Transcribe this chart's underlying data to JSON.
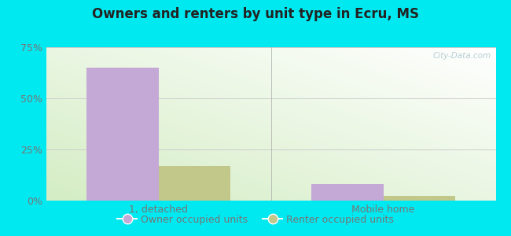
{
  "title": "Owners and renters by unit type in Ecru, MS",
  "categories": [
    "1, detached",
    "Mobile home"
  ],
  "owner_values": [
    65.0,
    8.0
  ],
  "renter_values": [
    17.0,
    2.5
  ],
  "owner_color": "#c4a8d6",
  "renter_color": "#c2c88a",
  "ylim": [
    0,
    75
  ],
  "yticks": [
    0,
    25,
    50,
    75
  ],
  "ytick_labels": [
    "0%",
    "25%",
    "50%",
    "75%"
  ],
  "bar_width": 0.32,
  "outer_bg": "#00e8f0",
  "legend_labels": [
    "Owner occupied units",
    "Renter occupied units"
  ],
  "watermark": "City-Data.com",
  "group_positions": [
    0.25,
    0.75
  ],
  "group_sep": 0.5
}
